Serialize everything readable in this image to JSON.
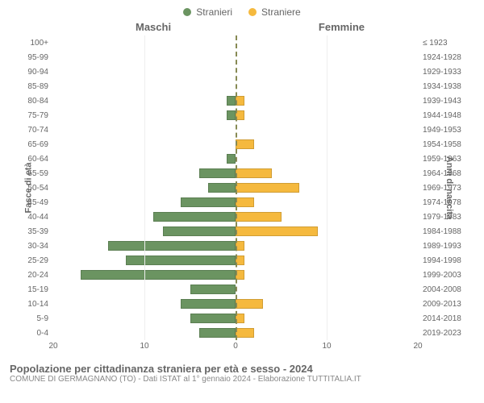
{
  "legend": {
    "male": {
      "label": "Stranieri",
      "color": "#6b9461"
    },
    "female": {
      "label": "Straniere",
      "color": "#f5b93e"
    }
  },
  "categories": {
    "male": "Maschi",
    "female": "Femmine"
  },
  "y_left_title": "Fasce di età",
  "y_right_title": "Anni di nascita",
  "x_max": 20,
  "x_ticks_left": [
    20,
    10,
    0
  ],
  "x_ticks_right": [
    0,
    10,
    20
  ],
  "center_line_color": "#878a54",
  "grid_color": "#eeeeee",
  "background_color": "#ffffff",
  "tick_fontsize": 10,
  "title_fontsize": 13,
  "rows": [
    {
      "age": "100+",
      "birth": "≤ 1923",
      "m": 0,
      "f": 0
    },
    {
      "age": "95-99",
      "birth": "1924-1928",
      "m": 0,
      "f": 0
    },
    {
      "age": "90-94",
      "birth": "1929-1933",
      "m": 0,
      "f": 0
    },
    {
      "age": "85-89",
      "birth": "1934-1938",
      "m": 0,
      "f": 0
    },
    {
      "age": "80-84",
      "birth": "1939-1943",
      "m": 1,
      "f": 1
    },
    {
      "age": "75-79",
      "birth": "1944-1948",
      "m": 1,
      "f": 1
    },
    {
      "age": "70-74",
      "birth": "1949-1953",
      "m": 0,
      "f": 0
    },
    {
      "age": "65-69",
      "birth": "1954-1958",
      "m": 0,
      "f": 2
    },
    {
      "age": "60-64",
      "birth": "1959-1963",
      "m": 1,
      "f": 0
    },
    {
      "age": "55-59",
      "birth": "1964-1968",
      "m": 4,
      "f": 4
    },
    {
      "age": "50-54",
      "birth": "1969-1973",
      "m": 3,
      "f": 7
    },
    {
      "age": "45-49",
      "birth": "1974-1978",
      "m": 6,
      "f": 2
    },
    {
      "age": "40-44",
      "birth": "1979-1983",
      "m": 9,
      "f": 5
    },
    {
      "age": "35-39",
      "birth": "1984-1988",
      "m": 8,
      "f": 9
    },
    {
      "age": "30-34",
      "birth": "1989-1993",
      "m": 14,
      "f": 1
    },
    {
      "age": "25-29",
      "birth": "1994-1998",
      "m": 12,
      "f": 1
    },
    {
      "age": "20-24",
      "birth": "1999-2003",
      "m": 17,
      "f": 1
    },
    {
      "age": "15-19",
      "birth": "2004-2008",
      "m": 5,
      "f": 0
    },
    {
      "age": "10-14",
      "birth": "2009-2013",
      "m": 6,
      "f": 3
    },
    {
      "age": "5-9",
      "birth": "2014-2018",
      "m": 5,
      "f": 1
    },
    {
      "age": "0-4",
      "birth": "2019-2023",
      "m": 4,
      "f": 2
    }
  ],
  "footer": {
    "title": "Popolazione per cittadinanza straniera per età e sesso - 2024",
    "subtitle": "COMUNE DI GERMAGNANO (TO) - Dati ISTAT al 1° gennaio 2024 - Elaborazione TUTTITALIA.IT"
  }
}
